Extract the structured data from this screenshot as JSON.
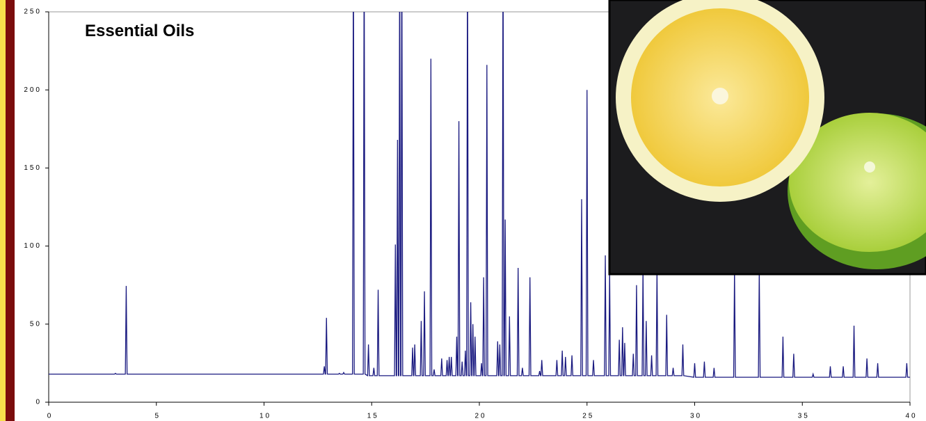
{
  "chart_data": {
    "type": "line",
    "title": "Essential Oils",
    "x": [
      0,
      3.06,
      3.1,
      3.14,
      3.56,
      3.6,
      3.64,
      12.76,
      12.8,
      12.84,
      12.86,
      12.9,
      12.94,
      13.46,
      13.5,
      13.54,
      13.66,
      13.7,
      13.74,
      14.11,
      14.15,
      14.19,
      14.61,
      14.65,
      14.69,
      14.81,
      14.85,
      14.89,
      15.06,
      15.1,
      15.14,
      15.26,
      15.3,
      15.34,
      16.06,
      16.1,
      16.14,
      16.16,
      16.2,
      16.24,
      16.26,
      16.3,
      16.34,
      16.36,
      16.4,
      16.44,
      16.86,
      16.9,
      16.94,
      16.96,
      17,
      17.04,
      17.26,
      17.3,
      17.34,
      17.41,
      17.45,
      17.49,
      17.71,
      17.75,
      17.79,
      17.86,
      17.9,
      17.94,
      18.21,
      18.25,
      18.29,
      18.46,
      18.5,
      18.54,
      18.56,
      18.6,
      18.64,
      18.66,
      18.7,
      18.74,
      18.91,
      18.95,
      18.99,
      19.01,
      19.05,
      19.09,
      19.16,
      19.2,
      19.24,
      19.31,
      19.35,
      19.39,
      19.41,
      19.45,
      19.49,
      19.56,
      19.6,
      19.64,
      19.66,
      19.7,
      19.74,
      19.76,
      19.8,
      19.84,
      20.06,
      20.1,
      20.14,
      20.16,
      20.2,
      20.24,
      20.31,
      20.35,
      20.39,
      20.81,
      20.85,
      20.89,
      20.91,
      20.95,
      20.99,
      21.06,
      21.1,
      21.14,
      21.16,
      21.2,
      21.24,
      21.36,
      21.4,
      21.44,
      21.76,
      21.8,
      21.84,
      21.96,
      22,
      22.04,
      22.31,
      22.35,
      22.39,
      22.76,
      22.8,
      22.84,
      22.86,
      22.9,
      22.94,
      23.56,
      23.6,
      23.64,
      23.81,
      23.85,
      23.89,
      23.96,
      24,
      24.04,
      24.26,
      24.3,
      24.34,
      24.71,
      24.75,
      24.79,
      24.96,
      25,
      25.04,
      25.26,
      25.3,
      25.34,
      25.81,
      25.85,
      25.89,
      26.01,
      26.05,
      26.09,
      26.46,
      26.5,
      26.54,
      26.61,
      26.65,
      26.69,
      26.71,
      26.75,
      26.79,
      27.11,
      27.15,
      27.19,
      27.26,
      27.3,
      27.34,
      27.56,
      27.6,
      27.64,
      27.71,
      27.75,
      27.79,
      27.96,
      28,
      28.04,
      28.21,
      28.25,
      28.29,
      28.66,
      28.7,
      28.74,
      28.96,
      29,
      29.04,
      29.41,
      29.45,
      29.49,
      29.96,
      30,
      30.04,
      30.41,
      30.45,
      30.49,
      30.86,
      30.9,
      30.94,
      31.81,
      31.85,
      31.89,
      32.96,
      33,
      33.04,
      34.06,
      34.1,
      34.14,
      34.56,
      34.6,
      34.64,
      35.46,
      35.5,
      35.54,
      36.26,
      36.3,
      36.34,
      36.86,
      36.9,
      36.94,
      37.36,
      37.4,
      37.44,
      37.96,
      38,
      38.04,
      38.46,
      38.5,
      38.54,
      39.81,
      39.85,
      39.89,
      40
    ],
    "values": [
      18,
      18,
      18.5,
      18,
      18,
      74.5,
      18,
      18,
      23,
      18,
      18,
      54,
      18,
      18,
      18.5,
      18,
      18,
      19,
      18,
      18,
      300,
      18,
      18,
      300,
      18,
      17,
      37,
      17,
      17,
      22,
      17,
      17,
      72,
      17,
      17,
      101,
      17,
      17,
      168,
      17,
      17,
      300,
      17,
      17,
      300,
      17,
      17,
      35,
      17,
      17,
      37,
      17,
      17,
      52,
      17,
      17,
      71,
      17,
      17,
      220,
      17,
      17,
      21,
      17,
      17,
      28,
      17,
      17,
      27,
      17,
      17,
      29,
      17,
      17,
      29,
      17,
      17,
      42,
      17,
      17,
      180,
      17,
      17,
      26,
      17,
      17,
      33,
      17,
      17,
      300,
      17,
      17,
      64,
      17,
      17,
      50,
      17,
      17,
      42,
      17,
      17,
      25,
      17,
      17,
      80,
      17,
      17,
      216,
      17,
      17,
      39,
      17,
      17,
      37,
      17,
      17,
      300,
      17,
      17,
      117,
      17,
      17,
      55,
      17,
      17,
      86,
      17,
      17,
      22,
      17,
      17,
      80,
      17,
      17,
      20,
      17,
      17,
      27,
      17,
      17,
      27,
      17,
      17,
      33,
      17,
      17,
      29,
      17,
      17,
      30,
      17,
      17,
      130,
      17,
      17,
      200,
      17,
      17,
      27,
      17,
      17,
      94,
      17,
      17,
      85,
      17,
      17,
      40,
      17,
      17,
      48,
      17,
      17,
      38,
      17,
      17,
      31,
      17,
      17,
      75,
      17,
      17,
      85,
      17,
      17,
      52,
      17,
      17,
      30,
      17,
      17,
      85,
      17,
      17,
      56,
      17,
      17,
      22,
      17,
      17,
      37,
      17,
      16,
      25,
      16,
      16,
      26,
      16,
      16,
      22,
      16,
      16,
      85,
      16,
      16,
      85,
      16,
      16,
      42,
      16,
      16,
      31,
      16,
      16,
      18,
      16,
      16,
      23,
      16,
      16,
      23,
      16,
      16,
      49,
      16,
      16,
      28,
      16,
      16,
      25,
      16,
      16,
      25,
      16,
      16
    ],
    "color": "#1a1a80",
    "xlim": [
      0,
      40
    ],
    "xticks": [
      0,
      5,
      10,
      15,
      20,
      25,
      30,
      35,
      40
    ],
    "ylim": [
      0,
      250
    ],
    "yticks": [
      0,
      50,
      100,
      150,
      200,
      250
    ]
  }
}
